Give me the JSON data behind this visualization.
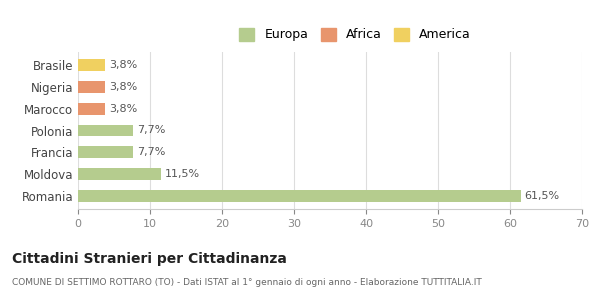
{
  "categories": [
    "Romania",
    "Moldova",
    "Francia",
    "Polonia",
    "Marocco",
    "Nigeria",
    "Brasile"
  ],
  "values": [
    61.5,
    11.5,
    7.7,
    7.7,
    3.8,
    3.8,
    3.8
  ],
  "labels": [
    "61,5%",
    "11,5%",
    "7,7%",
    "7,7%",
    "3,8%",
    "3,8%",
    "3,8%"
  ],
  "colors": [
    "#b5cc8e",
    "#b5cc8e",
    "#b5cc8e",
    "#b5cc8e",
    "#e8956d",
    "#e8956d",
    "#f0d060"
  ],
  "legend": [
    {
      "label": "Europa",
      "color": "#b5cc8e"
    },
    {
      "label": "Africa",
      "color": "#e8956d"
    },
    {
      "label": "America",
      "color": "#f0d060"
    }
  ],
  "xlim": [
    0,
    70
  ],
  "xticks": [
    0,
    10,
    20,
    30,
    40,
    50,
    60,
    70
  ],
  "title": "Cittadini Stranieri per Cittadinanza",
  "subtitle": "COMUNE DI SETTIMO ROTTARO (TO) - Dati ISTAT al 1° gennaio di ogni anno - Elaborazione TUTTITALIA.IT",
  "background_color": "#ffffff",
  "grid_color": "#dddddd"
}
